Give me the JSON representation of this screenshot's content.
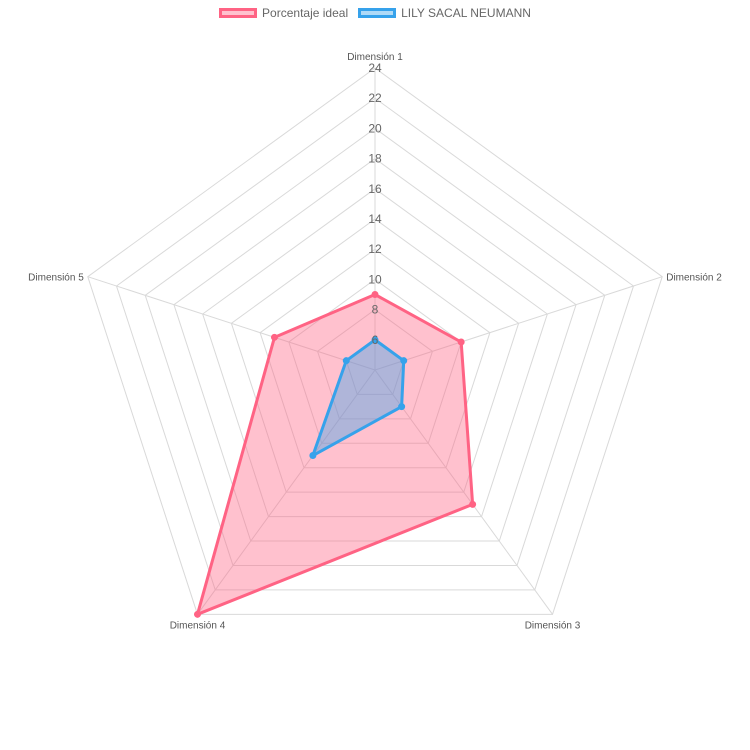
{
  "chart_data": {
    "type": "radar",
    "title": "",
    "categories": [
      "Dimensión 1",
      "Dimensión 2",
      "Dimensión 3",
      "Dimensión 4",
      "Dimensión 5"
    ],
    "r_ticks": [
      "6",
      "8",
      "10",
      "12",
      "14",
      "16",
      "18",
      "20",
      "22",
      "24"
    ],
    "rlim": [
      4,
      24
    ],
    "grid": true,
    "legend_position": "top",
    "series": [
      {
        "name": "Porcentaje ideal",
        "values": [
          9,
          10,
          15,
          24,
          11
        ],
        "border_color": "#ff6384",
        "fill_color": "rgba(255,99,132,0.4)"
      },
      {
        "name": "LILY SACAL NEUMANN",
        "values": [
          6,
          6,
          7,
          11,
          6
        ],
        "border_color": "#36a2eb",
        "fill_color": "rgba(54,162,235,0.4)"
      }
    ]
  }
}
